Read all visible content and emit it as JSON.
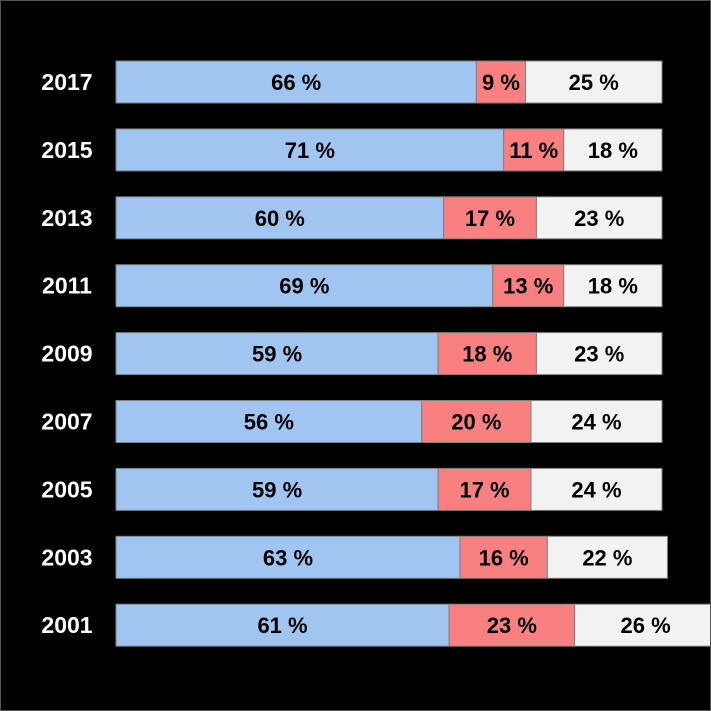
{
  "chart_data": {
    "type": "bar",
    "orientation": "horizontal",
    "stacked": true,
    "normalized": true,
    "categories": [
      "2017",
      "2015",
      "2013",
      "2011",
      "2009",
      "2007",
      "2005",
      "2003",
      "2001"
    ],
    "series": [
      {
        "values": [
          66,
          71,
          60,
          69,
          59,
          56,
          59,
          63,
          61
        ],
        "color": "#9fc5f0"
      },
      {
        "values": [
          9,
          11,
          17,
          13,
          18,
          20,
          17,
          16,
          23
        ],
        "color": "#f98080"
      },
      {
        "values": [
          25,
          18,
          23,
          18,
          23,
          24,
          24,
          22,
          26
        ],
        "color": "#f2f2f2"
      }
    ],
    "value_suffix": " %",
    "xlim": [
      0,
      100
    ],
    "grid": false,
    "legend": "none",
    "background": "#000000",
    "segment_border_color": "#7f7f7f"
  }
}
